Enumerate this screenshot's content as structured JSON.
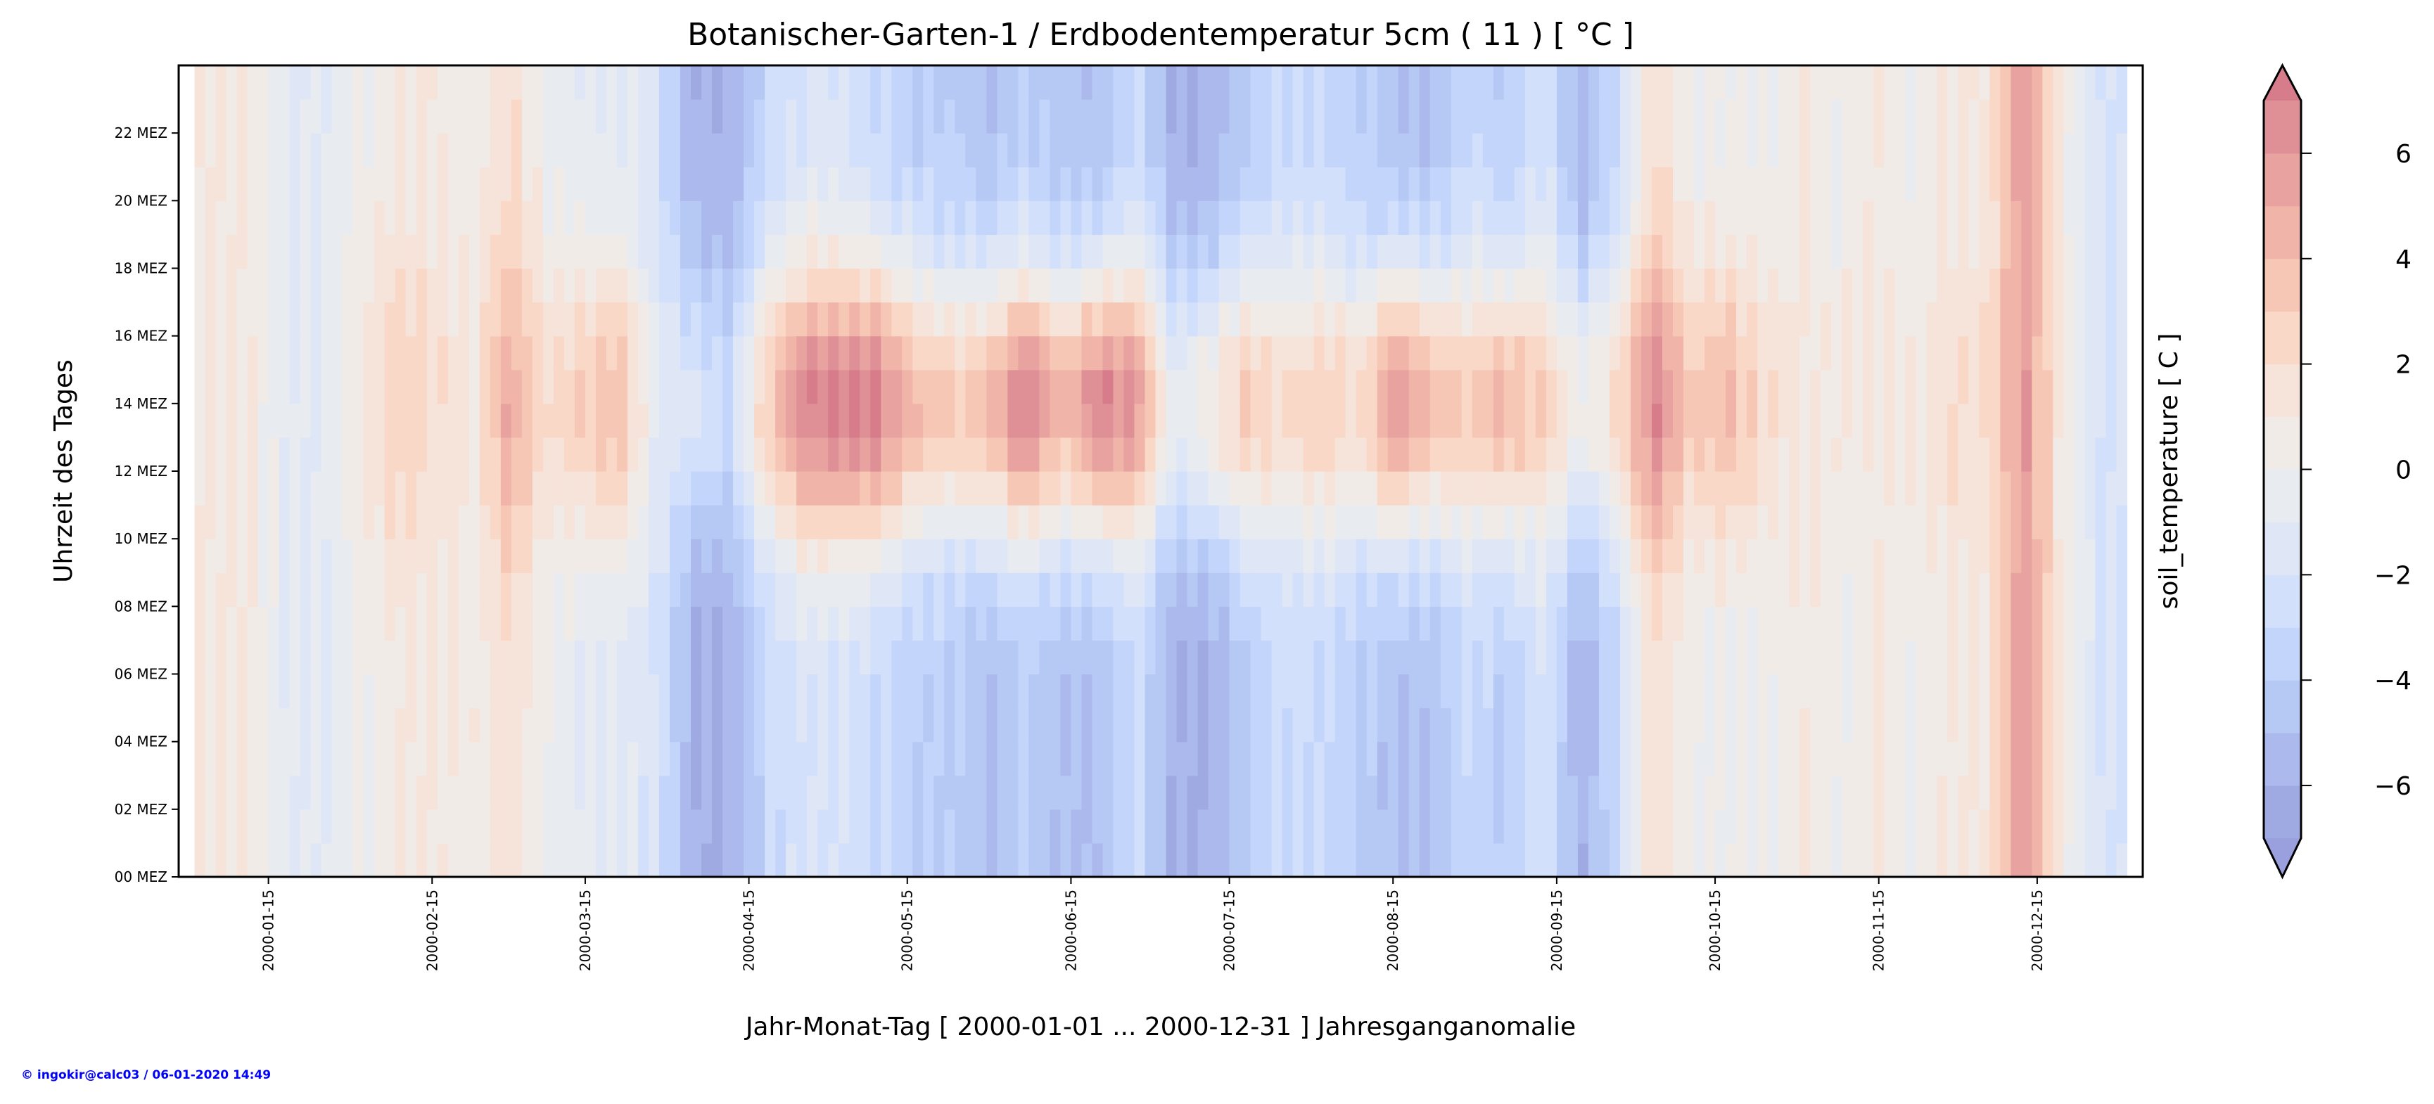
{
  "chart_data": {
    "type": "heatmap",
    "title": "Botanischer-Garten-1 / Erdbodentemperatur 5cm ( 11 ) [ °C ]",
    "xlabel": "Jahr-Monat-Tag [ 2000-01-01 ... 2000-12-31 ] Jahresganganomalie",
    "ylabel": "Uhrzeit des Tages",
    "colorbar_label": "soil_temperature [ C ]",
    "x_tick_labels": [
      "2000-01-15",
      "2000-02-15",
      "2000-03-15",
      "2000-04-15",
      "2000-05-15",
      "2000-06-15",
      "2000-07-15",
      "2000-08-15",
      "2000-09-15",
      "2000-10-15",
      "2000-11-15",
      "2000-12-15"
    ],
    "x_tick_days": [
      14,
      45,
      74,
      105,
      135,
      166,
      196,
      227,
      258,
      288,
      319,
      349
    ],
    "y_tick_labels": [
      "00 MEZ",
      "02 MEZ",
      "04 MEZ",
      "06 MEZ",
      "08 MEZ",
      "10 MEZ",
      "12 MEZ",
      "14 MEZ",
      "16 MEZ",
      "18 MEZ",
      "20 MEZ",
      "22 MEZ"
    ],
    "y_tick_hours": [
      0,
      2,
      4,
      6,
      8,
      10,
      12,
      14,
      16,
      18,
      20,
      22
    ],
    "colorbar_ticks": [
      "−6",
      "−4",
      "−2",
      "0",
      "2",
      "4",
      "6"
    ],
    "colorbar_tick_values": [
      -6,
      -4,
      -2,
      0,
      2,
      4,
      6
    ],
    "levels_range": [
      -7,
      7
    ],
    "level_step": 1,
    "level_colors": [
      "#a0aae2",
      "#abb9ed",
      "#b6c8f4",
      "#c4d5fb",
      "#d2e0fb",
      "#dfe6f6",
      "#e8ebf0",
      "#f1ebe8",
      "#f6e3da",
      "#f9d8c8",
      "#f7c7b6",
      "#f1b4a8",
      "#e8a3a0",
      "#df9096"
    ],
    "over_color": "#d77c8b",
    "under_color": "#9aa0de",
    "weekly_start_days": "weeks starting 2000-01-01, 7-day steps",
    "weekly_afternoon_anomaly": [
      1,
      1,
      -1,
      -1,
      1,
      3,
      2,
      1,
      5,
      2,
      3,
      4,
      -1,
      -2,
      -3,
      3,
      7,
      7,
      7,
      4,
      3,
      4,
      7,
      4,
      7,
      6,
      -1,
      1,
      3,
      2,
      3,
      2,
      6,
      4,
      3,
      4,
      3,
      0,
      2,
      7,
      3,
      4,
      2,
      1,
      1,
      1,
      1,
      2,
      2,
      6,
      1,
      -2,
      -2
    ],
    "weekly_night_anomaly": [
      1,
      1,
      -1,
      -1,
      0,
      1,
      1,
      0.5,
      2,
      0,
      -1,
      -1,
      -2,
      -6,
      -6,
      -3,
      -2,
      -2,
      -3,
      -4,
      -4,
      -5,
      -4,
      -5,
      -5,
      -3,
      -6,
      -6,
      -4,
      -3,
      -3,
      -4,
      -5,
      -5,
      -3,
      -4,
      -2,
      -6,
      -3,
      2,
      0,
      0,
      0,
      1,
      0,
      1,
      0,
      1,
      1,
      6,
      1,
      -2,
      -2
    ]
  },
  "footer": {
    "copyright": "© ingokir@calc03 / 06-01-2020 14:49"
  }
}
